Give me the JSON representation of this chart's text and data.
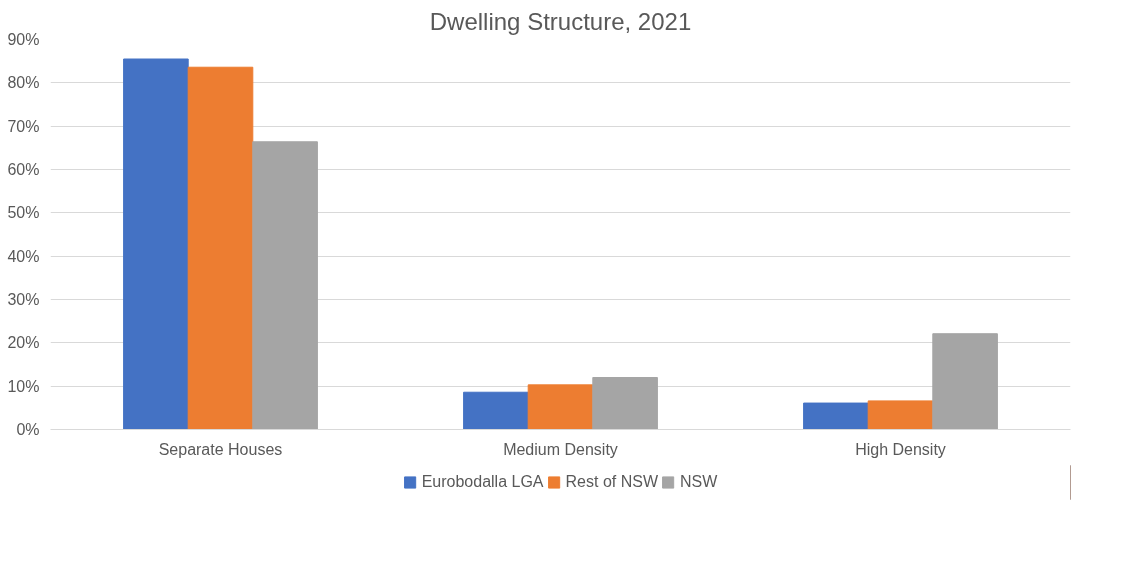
{
  "chart_data": {
    "type": "bar",
    "title": "Dwelling Structure, 2021",
    "categories": [
      "Separate Houses",
      "Medium Density",
      "High Density"
    ],
    "series": [
      {
        "name": "Eurobodalla LGA",
        "color": "#4472c4",
        "values": [
          85.5,
          8.6,
          6.1
        ]
      },
      {
        "name": "Rest of NSW",
        "color": "#ed7d31",
        "values": [
          83.6,
          10.3,
          6.6
        ]
      },
      {
        "name": "NSW",
        "color": "#a5a5a5",
        "values": [
          66.4,
          12.0,
          22.1
        ]
      }
    ],
    "ylim": [
      0,
      90
    ],
    "yticks": [
      {
        "value": 0,
        "label": "0%"
      },
      {
        "value": 10,
        "label": "10%"
      },
      {
        "value": 20,
        "label": "20%"
      },
      {
        "value": 30,
        "label": "30%"
      },
      {
        "value": 40,
        "label": "40%"
      },
      {
        "value": 50,
        "label": "50%"
      },
      {
        "value": 60,
        "label": "60%"
      },
      {
        "value": 70,
        "label": "70%"
      },
      {
        "value": 80,
        "label": "80%"
      },
      {
        "value": 90,
        "label": "90%"
      }
    ],
    "grid": "y",
    "legend": "bottom"
  }
}
